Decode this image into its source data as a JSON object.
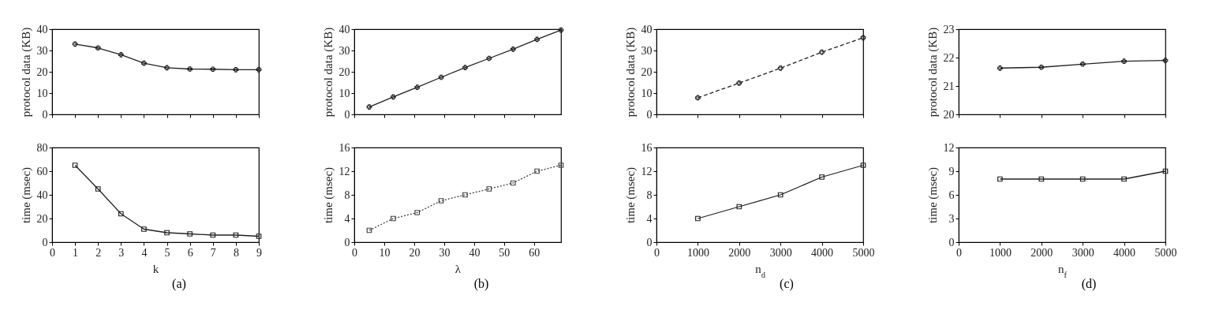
{
  "chart_data": [
    {
      "type": "line",
      "ylabel": "protocol data (KB)",
      "x": [
        1,
        2,
        3,
        4,
        5,
        6,
        7,
        8,
        9
      ],
      "xlim": [
        0,
        9
      ],
      "xticks": [
        0,
        1,
        2,
        3,
        4,
        5,
        6,
        7,
        8,
        9
      ],
      "ylim": [
        0,
        40
      ],
      "yticks": [
        0,
        10,
        20,
        30,
        40
      ],
      "tick_labels": "y",
      "marker": "cross",
      "line_style": "solid",
      "series": [
        {
          "color": "#222222",
          "values": [
            33,
            31.2,
            28,
            24,
            21.9,
            21.3,
            21.2,
            21,
            21
          ]
        }
      ]
    },
    {
      "type": "line",
      "ylabel": "protocol data (KB)",
      "x": [
        5,
        13,
        21,
        29,
        37,
        45,
        53,
        61,
        69
      ],
      "xlim": [
        0,
        69
      ],
      "xticks": [
        0,
        10,
        20,
        30,
        40,
        50,
        60
      ],
      "ylim": [
        0,
        40
      ],
      "yticks": [
        0,
        10,
        20,
        30,
        40
      ],
      "tick_labels": "y",
      "marker": "cross",
      "line_style": "solid",
      "series": [
        {
          "color": "#222222",
          "values": [
            3.5,
            8.2,
            12.7,
            17.4,
            22,
            26.3,
            30.6,
            35.2,
            39.6
          ]
        }
      ]
    },
    {
      "type": "line",
      "ylabel": "protocol data (KB)",
      "x": [
        1000,
        2000,
        3000,
        4000,
        5000
      ],
      "xlim": [
        0,
        5000
      ],
      "xticks": [
        0,
        1000,
        2000,
        3000,
        4000,
        5000
      ],
      "ylim": [
        0,
        40
      ],
      "yticks": [
        0,
        10,
        20,
        30,
        40
      ],
      "tick_labels": "y",
      "marker": "cross",
      "line_style": "dashed",
      "series": [
        {
          "color": "#222222",
          "values": [
            7.8,
            14.7,
            21.7,
            29.2,
            36
          ]
        }
      ]
    },
    {
      "type": "line",
      "ylabel": "protocol data (KB)",
      "x": [
        1000,
        2000,
        3000,
        4000,
        5000
      ],
      "xlim": [
        0,
        5000
      ],
      "xticks": [
        0,
        1000,
        2000,
        3000,
        4000,
        5000
      ],
      "ylim": [
        20,
        23
      ],
      "yticks": [
        20,
        21,
        22,
        23
      ],
      "tick_labels": "y",
      "marker": "cross",
      "line_style": "solid",
      "series": [
        {
          "color": "#222222",
          "values": [
            21.63,
            21.66,
            21.77,
            21.87,
            21.9
          ]
        }
      ]
    },
    {
      "type": "line",
      "ylabel": "time (msec)",
      "xlabel": "k",
      "annotations": [
        "(a)"
      ],
      "x": [
        1,
        2,
        3,
        4,
        5,
        6,
        7,
        8,
        9
      ],
      "xlim": [
        0,
        9
      ],
      "xticks": [
        0,
        1,
        2,
        3,
        4,
        5,
        6,
        7,
        8,
        9
      ],
      "ylim": [
        0,
        80
      ],
      "yticks": [
        0,
        20,
        40,
        60,
        80
      ],
      "marker": "square",
      "line_style": "solid",
      "series": [
        {
          "color": "#222222",
          "values": [
            65,
            45,
            24,
            11,
            8,
            7,
            6,
            6,
            5
          ]
        }
      ]
    },
    {
      "type": "line",
      "ylabel": "time (msec)",
      "xlabel": "λ",
      "annotations": [
        "(b)"
      ],
      "x": [
        5,
        13,
        21,
        29,
        37,
        45,
        53,
        61,
        69
      ],
      "xlim": [
        0,
        69
      ],
      "xticks": [
        0,
        10,
        20,
        30,
        40,
        50,
        60
      ],
      "ylim": [
        0,
        16
      ],
      "yticks": [
        0,
        4,
        8,
        12,
        16
      ],
      "marker": "square",
      "line_style": "dotted",
      "series": [
        {
          "color": "#444444",
          "values": [
            2,
            4,
            5,
            7,
            8,
            9,
            10,
            12,
            13
          ]
        }
      ]
    },
    {
      "type": "line",
      "ylabel": "time (msec)",
      "xlabel": "n$_{d}$",
      "annotations": [
        "(c)"
      ],
      "x": [
        1000,
        2000,
        3000,
        4000,
        5000
      ],
      "xlim": [
        0,
        5000
      ],
      "xticks": [
        0,
        1000,
        2000,
        3000,
        4000,
        5000
      ],
      "ylim": [
        0,
        16
      ],
      "yticks": [
        0,
        4,
        8,
        12,
        16
      ],
      "marker": "square",
      "line_style": "solid",
      "series": [
        {
          "color": "#222222",
          "values": [
            4,
            6,
            8,
            11,
            13
          ]
        }
      ]
    },
    {
      "type": "line",
      "ylabel": "time (msec)",
      "xlabel": "n$_{f}$",
      "annotations": [
        "(d)"
      ],
      "x": [
        1000,
        2000,
        3000,
        4000,
        5000
      ],
      "xlim": [
        0,
        5000
      ],
      "xticks": [
        0,
        1000,
        2000,
        3000,
        4000,
        5000
      ],
      "ylim": [
        0,
        12
      ],
      "yticks": [
        0,
        3,
        6,
        9,
        12
      ],
      "marker": "square",
      "line_style": "solid",
      "series": [
        {
          "color": "#222222",
          "values": [
            8,
            8,
            8,
            8,
            9
          ]
        }
      ]
    }
  ]
}
